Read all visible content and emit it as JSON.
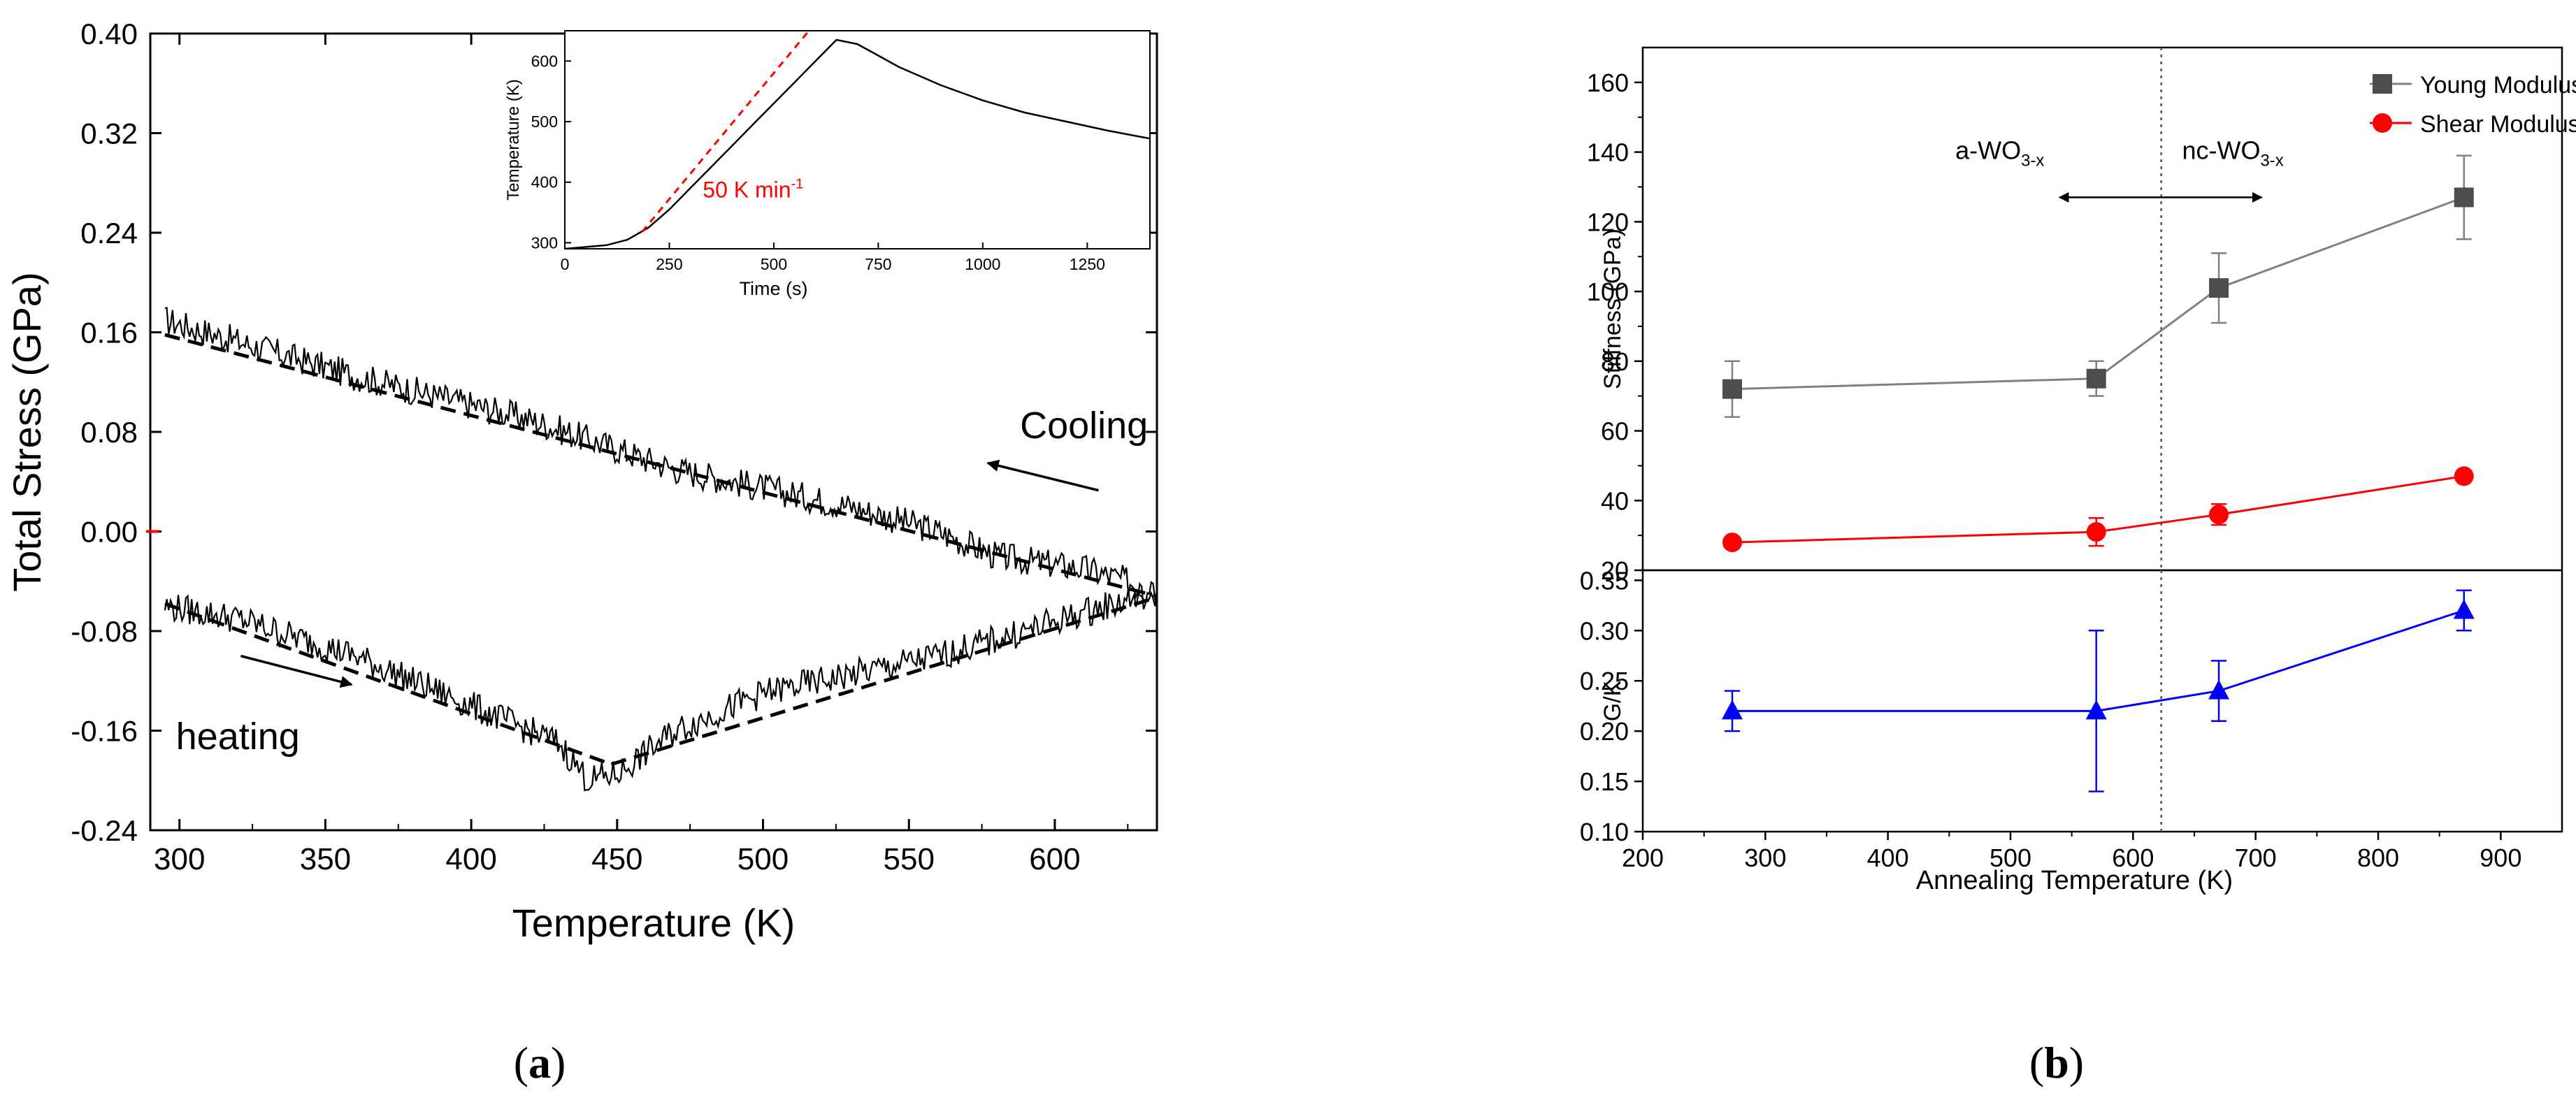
{
  "figure": {
    "panel_a_caption": {
      "open": "(",
      "letter": "a",
      "close": ")"
    },
    "panel_b_caption": {
      "open": "(",
      "letter": "b",
      "close": ")"
    }
  },
  "chart_data": [
    {
      "id": "panel-a-main",
      "type": "line",
      "title": "",
      "xlabel": "Temperature (K)",
      "ylabel": "Total Stress (GPa)",
      "xlim": [
        290,
        635
      ],
      "ylim": [
        -0.24,
        0.4
      ],
      "xticks": [
        "300",
        "350",
        "400",
        "450",
        "500",
        "550",
        "600"
      ],
      "xtick_values": [
        300,
        350,
        400,
        450,
        500,
        550,
        600
      ],
      "yticks": [
        "0.40",
        "0.32",
        "0.24",
        "0.16",
        "0.08",
        "0.00",
        "-0.08",
        "-0.16",
        "-0.24"
      ],
      "ytick_values": [
        0.4,
        0.32,
        0.24,
        0.16,
        0.08,
        0.0,
        -0.08,
        -0.16,
        -0.24
      ],
      "annotations": [
        {
          "text": "Cooling",
          "x": 610,
          "y": 0.075
        },
        {
          "text": "heating",
          "x": 320,
          "y": -0.175
        }
      ],
      "arrows": [
        {
          "name": "cooling-arrow",
          "from": [
            615,
            0.033
          ],
          "to": [
            577,
            0.055
          ]
        },
        {
          "name": "heating-arrow",
          "from": [
            321,
            -0.1
          ],
          "to": [
            359,
            -0.123
          ]
        }
      ],
      "series": [
        {
          "name": "cooling",
          "style": "noisy",
          "x": [
            295,
            360,
            420,
            470,
            500,
            530,
            560,
            580,
            610,
            625,
            635
          ],
          "y": [
            0.17,
            0.125,
            0.09,
            0.05,
            0.035,
            0.02,
            0.0,
            -0.02,
            -0.03,
            -0.04,
            -0.05
          ]
        },
        {
          "name": "cooling-fit",
          "style": "dashed",
          "x": [
            295,
            635
          ],
          "y": [
            0.158,
            -0.052
          ]
        },
        {
          "name": "heating",
          "style": "noisy",
          "x": [
            295,
            320,
            360,
            400,
            430,
            440,
            450,
            470,
            500,
            530,
            560,
            590,
            610,
            625,
            635
          ],
          "y": [
            -0.06,
            -0.07,
            -0.1,
            -0.14,
            -0.17,
            -0.2,
            -0.195,
            -0.16,
            -0.13,
            -0.115,
            -0.1,
            -0.08,
            -0.065,
            -0.055,
            -0.05
          ]
        },
        {
          "name": "heating-fit-1",
          "style": "dashed",
          "x": [
            295,
            448
          ],
          "y": [
            -0.058,
            -0.187
          ]
        },
        {
          "name": "heating-fit-2",
          "style": "dashed",
          "x": [
            448,
            635
          ],
          "y": [
            -0.187,
            -0.053
          ]
        }
      ],
      "markers": [
        {
          "x": 290,
          "y": 0.0,
          "color": "#ff0000"
        }
      ]
    },
    {
      "id": "panel-a-inset",
      "type": "line",
      "title": "",
      "xlabel": "Time (s)",
      "ylabel": "Temperature (K)",
      "xlim": [
        0,
        1400
      ],
      "ylim": [
        290,
        650
      ],
      "xticks": [
        "0",
        "250",
        "500",
        "750",
        "1000",
        "1250"
      ],
      "xtick_values": [
        0,
        250,
        500,
        750,
        1000,
        1250
      ],
      "yticks": [
        "300",
        "400",
        "500",
        "600"
      ],
      "ytick_values": [
        300,
        400,
        500,
        600
      ],
      "annotations": [
        {
          "text": "50 K min",
          "sup": "-1",
          "x": 330,
          "y": 375,
          "color": "#ff0000"
        }
      ],
      "series": [
        {
          "name": "temperature",
          "color": "#000000",
          "x": [
            0,
            100,
            150,
            200,
            250,
            300,
            350,
            400,
            450,
            500,
            550,
            600,
            650,
            700,
            800,
            900,
            1000,
            1100,
            1200,
            1300,
            1400
          ],
          "y": [
            290,
            296,
            305,
            325,
            355,
            390,
            425,
            460,
            495,
            530,
            565,
            600,
            635,
            628,
            590,
            560,
            535,
            515,
            500,
            485,
            472
          ]
        },
        {
          "name": "linear-fit",
          "color": "#ff0000",
          "style": "dashed",
          "x": [
            185,
            590
          ],
          "y": [
            318,
            655
          ]
        }
      ]
    },
    {
      "id": "panel-b-top",
      "type": "line",
      "title": "",
      "xlabel": "",
      "ylabel": "Stiffness (GPa)",
      "xlim": [
        200,
        950
      ],
      "ylim": [
        20,
        170
      ],
      "yticks": [
        "20",
        "40",
        "60",
        "80",
        "100",
        "120",
        "140",
        "160"
      ],
      "ytick_values": [
        20,
        40,
        60,
        80,
        100,
        120,
        140,
        160
      ],
      "vline": 623,
      "phase_labels": [
        {
          "main": "a-WO",
          "sub": "3-x",
          "x": 455,
          "y": 138
        },
        {
          "main": "nc-WO",
          "sub": "3-x",
          "x": 640,
          "y": 138
        }
      ],
      "phase_arrow": {
        "from": 540,
        "to": 705,
        "y": 127
      },
      "series": [
        {
          "name": "Young Modulus",
          "color": "#4d4d4d",
          "line": "#808080",
          "marker": "square",
          "x": [
            273,
            570,
            670,
            870
          ],
          "y": [
            72,
            75,
            101,
            127
          ],
          "err": [
            8,
            5,
            10,
            12
          ]
        },
        {
          "name": "Shear Modulus",
          "color": "#ff0000",
          "line": "#ff0000",
          "marker": "circle",
          "x": [
            273,
            570,
            670,
            870
          ],
          "y": [
            28,
            31,
            36,
            47
          ],
          "err": [
            0,
            4,
            3,
            0
          ]
        }
      ],
      "legend": [
        "Young Modulus",
        "Shear Modulus"
      ]
    },
    {
      "id": "panel-b-bottom",
      "type": "line",
      "title": "",
      "xlabel": "Annealing Temperature (K)",
      "ylabel": "G/K",
      "xlim": [
        200,
        950
      ],
      "ylim": [
        0.1,
        0.36
      ],
      "xticks": [
        "200",
        "300",
        "400",
        "500",
        "600",
        "700",
        "800",
        "900"
      ],
      "xtick_values": [
        200,
        300,
        400,
        500,
        600,
        700,
        800,
        900
      ],
      "yticks": [
        "0.10",
        "0.15",
        "0.20",
        "0.25",
        "0.30",
        "0.35"
      ],
      "ytick_values": [
        0.1,
        0.15,
        0.2,
        0.25,
        0.3,
        0.35
      ],
      "vline": 623,
      "series": [
        {
          "name": "G/K",
          "color": "#0000ff",
          "line": "#0000ff",
          "marker": "triangle",
          "x": [
            273,
            570,
            670,
            870
          ],
          "y": [
            0.22,
            0.22,
            0.24,
            0.32
          ],
          "err": [
            0.02,
            0.08,
            0.03,
            0.02
          ]
        }
      ]
    }
  ]
}
